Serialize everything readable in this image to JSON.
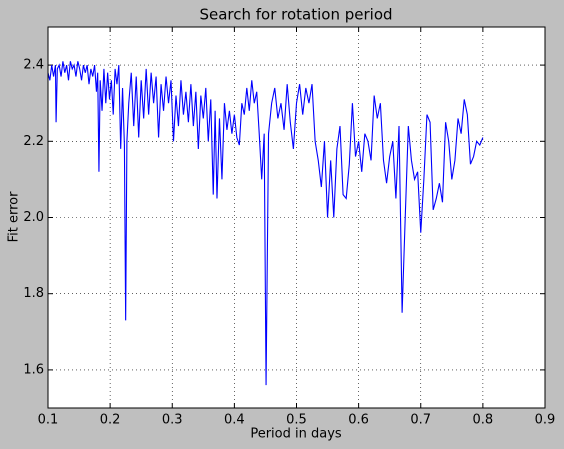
{
  "chart_data": {
    "type": "line",
    "title": "Search for rotation period",
    "xlabel": "Period in days",
    "ylabel": "Fit error",
    "xlim": [
      0.1,
      0.9
    ],
    "xticks": [
      0.1,
      0.2,
      0.3,
      0.4,
      0.5,
      0.6,
      0.7,
      0.8,
      0.9
    ],
    "ylim": [
      1.5,
      2.5
    ],
    "yticks": [
      1.6,
      1.8,
      {
        "value": 2,
        "label": "2.0"
      },
      2.2,
      2.4
    ],
    "grid": true,
    "series": [
      {
        "color": "#0000ff",
        "x": [
          0.1,
          0.103,
          0.106,
          0.109,
          0.112,
          0.113,
          0.115,
          0.118,
          0.121,
          0.124,
          0.127,
          0.13,
          0.133,
          0.136,
          0.139,
          0.142,
          0.145,
          0.148,
          0.151,
          0.154,
          0.157,
          0.16,
          0.163,
          0.166,
          0.169,
          0.172,
          0.175,
          0.178,
          0.18,
          0.182,
          0.184,
          0.187,
          0.19,
          0.193,
          0.196,
          0.199,
          0.202,
          0.205,
          0.208,
          0.211,
          0.214,
          0.217,
          0.22,
          0.223,
          0.225,
          0.227,
          0.23,
          0.234,
          0.238,
          0.242,
          0.246,
          0.25,
          0.254,
          0.258,
          0.262,
          0.266,
          0.27,
          0.274,
          0.278,
          0.282,
          0.286,
          0.29,
          0.294,
          0.298,
          0.302,
          0.306,
          0.31,
          0.314,
          0.318,
          0.322,
          0.326,
          0.33,
          0.334,
          0.338,
          0.342,
          0.346,
          0.35,
          0.354,
          0.358,
          0.362,
          0.366,
          0.369,
          0.372,
          0.376,
          0.38,
          0.384,
          0.388,
          0.392,
          0.396,
          0.4,
          0.404,
          0.408,
          0.412,
          0.416,
          0.42,
          0.424,
          0.428,
          0.432,
          0.436,
          0.44,
          0.444,
          0.448,
          0.451,
          0.455,
          0.46,
          0.465,
          0.47,
          0.475,
          0.48,
          0.485,
          0.49,
          0.495,
          0.5,
          0.505,
          0.51,
          0.515,
          0.52,
          0.525,
          0.53,
          0.535,
          0.54,
          0.545,
          0.55,
          0.555,
          0.56,
          0.565,
          0.57,
          0.575,
          0.58,
          0.585,
          0.59,
          0.595,
          0.6,
          0.605,
          0.61,
          0.615,
          0.62,
          0.625,
          0.63,
          0.635,
          0.64,
          0.645,
          0.65,
          0.655,
          0.66,
          0.665,
          0.67,
          0.675,
          0.68,
          0.685,
          0.69,
          0.695,
          0.7,
          0.705,
          0.71,
          0.715,
          0.72,
          0.725,
          0.73,
          0.735,
          0.74,
          0.745,
          0.75,
          0.755,
          0.76,
          0.765,
          0.77,
          0.775,
          0.78,
          0.785,
          0.79,
          0.795,
          0.8
        ],
        "values": [
          2.38,
          2.36,
          2.4,
          2.37,
          2.4,
          2.25,
          2.39,
          2.4,
          2.37,
          2.41,
          2.38,
          2.4,
          2.36,
          2.41,
          2.39,
          2.4,
          2.37,
          2.41,
          2.39,
          2.36,
          2.4,
          2.38,
          2.4,
          2.35,
          2.39,
          2.37,
          2.4,
          2.33,
          2.38,
          2.12,
          2.36,
          2.28,
          2.39,
          2.3,
          2.38,
          2.31,
          2.36,
          2.27,
          2.39,
          2.35,
          2.4,
          2.18,
          2.34,
          2.19,
          1.73,
          2.2,
          2.3,
          2.38,
          2.24,
          2.37,
          2.21,
          2.36,
          2.26,
          2.39,
          2.27,
          2.38,
          2.3,
          2.37,
          2.21,
          2.35,
          2.28,
          2.37,
          2.3,
          2.36,
          2.2,
          2.32,
          2.24,
          2.36,
          2.27,
          2.33,
          2.25,
          2.35,
          2.24,
          2.33,
          2.18,
          2.32,
          2.26,
          2.34,
          2.2,
          2.31,
          2.06,
          2.28,
          2.05,
          2.26,
          2.1,
          2.3,
          2.23,
          2.28,
          2.22,
          2.27,
          2.21,
          2.19,
          2.3,
          2.27,
          2.34,
          2.28,
          2.36,
          2.3,
          2.33,
          2.22,
          2.1,
          2.22,
          1.56,
          2.22,
          2.3,
          2.34,
          2.26,
          2.3,
          2.23,
          2.35,
          2.25,
          2.18,
          2.3,
          2.35,
          2.27,
          2.34,
          2.3,
          2.35,
          2.2,
          2.15,
          2.08,
          2.2,
          2.0,
          2.15,
          2.0,
          2.18,
          2.24,
          2.06,
          2.05,
          2.14,
          2.3,
          2.16,
          2.2,
          2.12,
          2.22,
          2.2,
          2.15,
          2.32,
          2.26,
          2.3,
          2.15,
          2.09,
          2.16,
          2.2,
          2.05,
          2.24,
          1.75,
          2.0,
          2.24,
          2.15,
          2.1,
          2.12,
          1.96,
          2.1,
          2.27,
          2.25,
          2.02,
          2.05,
          2.09,
          2.04,
          2.25,
          2.2,
          2.1,
          2.15,
          2.26,
          2.22,
          2.31,
          2.27,
          2.14,
          2.16,
          2.2,
          2.19,
          2.21
        ]
      }
    ]
  }
}
